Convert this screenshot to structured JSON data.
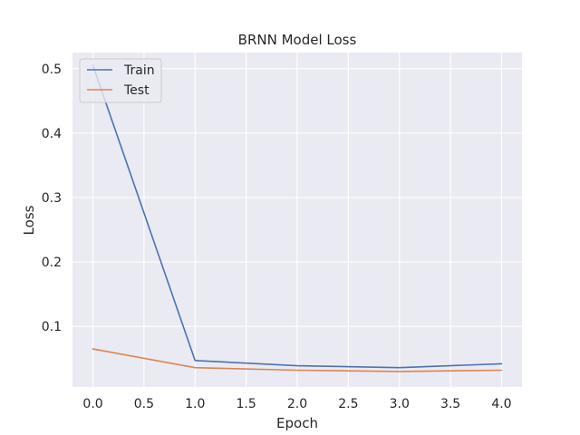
{
  "chart_data": {
    "type": "line",
    "title": "BRNN Model  Loss",
    "xlabel": "Epoch",
    "ylabel": "Loss",
    "x": [
      0,
      1,
      2,
      3,
      4
    ],
    "xlim": [
      -0.2,
      4.2
    ],
    "ylim": [
      0.006,
      0.525
    ],
    "xticks": [
      0.0,
      0.5,
      1.0,
      1.5,
      2.0,
      2.5,
      3.0,
      3.5,
      4.0
    ],
    "xtick_labels": [
      "0.0",
      "0.5",
      "1.0",
      "1.5",
      "2.0",
      "2.5",
      "3.0",
      "3.5",
      "4.0"
    ],
    "yticks": [
      0.1,
      0.2,
      0.3,
      0.4,
      0.5
    ],
    "ytick_labels": [
      "0.1",
      "0.2",
      "0.3",
      "0.4",
      "0.5"
    ],
    "grid": true,
    "legend_position": "top-left",
    "series": [
      {
        "name": "Train",
        "color": "#4c72b0",
        "values": [
          0.505,
          0.047,
          0.039,
          0.036,
          0.042
        ]
      },
      {
        "name": "Test",
        "color": "#dd8452",
        "values": [
          0.065,
          0.036,
          0.032,
          0.03,
          0.032
        ]
      }
    ]
  }
}
